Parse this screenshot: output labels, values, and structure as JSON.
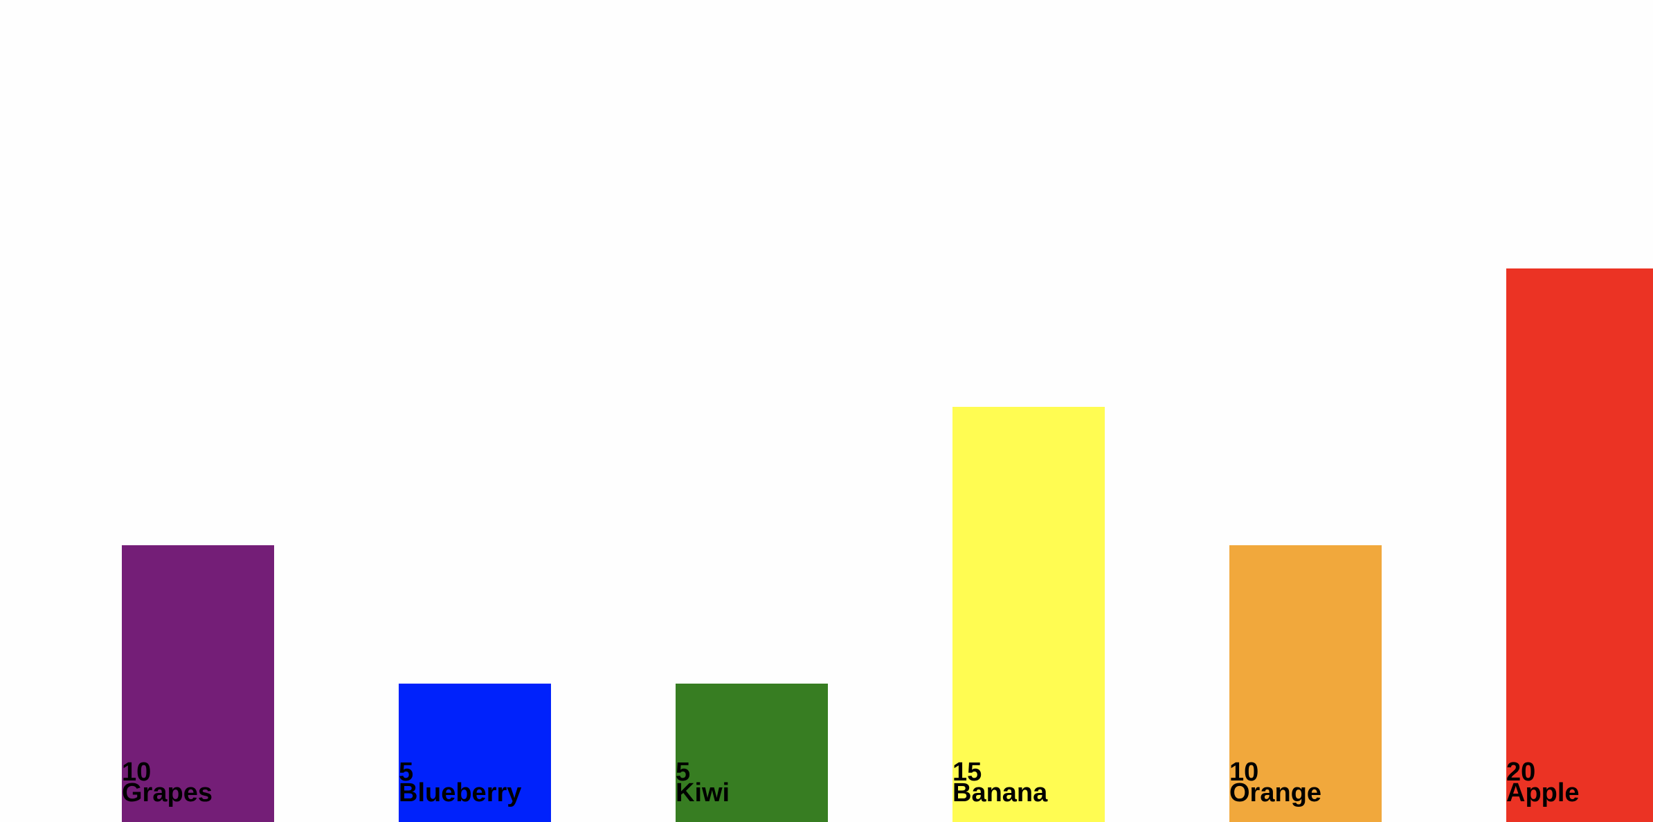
{
  "chart_data": {
    "type": "bar",
    "categories": [
      "Grapes",
      "Blueberry",
      "Kiwi",
      "Banana",
      "Orange",
      "Apple"
    ],
    "values": [
      10,
      5,
      5,
      15,
      10,
      20
    ],
    "value_labels": [
      "10",
      "5",
      "5",
      "15",
      "10",
      "20"
    ],
    "colors": [
      "#741e77",
      "#0022fb",
      "#377d22",
      "#fffc52",
      "#f1a83c",
      "#eb3324"
    ],
    "ylim": [
      0,
      20
    ],
    "grid": false,
    "legend": "none",
    "title": "",
    "xlabel": "",
    "ylabel": ""
  }
}
